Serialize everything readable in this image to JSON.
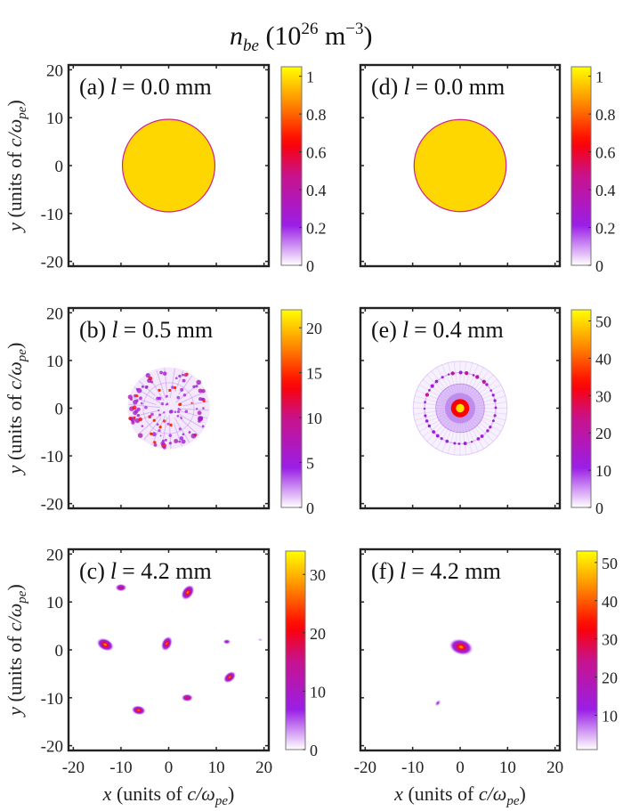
{
  "figure": {
    "title_main": "n",
    "title_sub": "be",
    "title_rest": " (10",
    "title_exp": "26",
    "title_unit": " m",
    "title_unit_exp": "−3",
    "title_close": ")"
  },
  "colormap": [
    "#ffffff",
    "#9a1fe6",
    "#c8128c",
    "#ff0000",
    "#ff8c00",
    "#ffff00"
  ],
  "chart_data": [
    {
      "type": "heatmap",
      "panel": "a",
      "label": "(a)",
      "l_text": "l = 0.0 mm",
      "xlim": [
        -21,
        21
      ],
      "ylim": [
        -21,
        21
      ],
      "xticks": [
        -20,
        -10,
        0,
        10,
        20
      ],
      "yticks": [
        -20,
        -10,
        0,
        10,
        20
      ],
      "ytick_labels": [
        "20",
        "10",
        "0",
        "-10",
        "-20"
      ],
      "xlabel": "",
      "ylabel": "y (units of c/ω_pe)",
      "ylabel_parts": {
        "var": "y",
        "text": " (units of ",
        "c": "c/ω",
        "sub": "pe",
        "close": ")"
      },
      "colorbar": {
        "min": 0,
        "max": 1.05,
        "ticks": [
          0,
          0.2,
          0.4,
          0.6,
          0.8,
          1
        ],
        "tick_labels": [
          "0",
          "0.2",
          "0.4",
          "0.6",
          "0.8",
          "1"
        ]
      },
      "features": [
        {
          "kind": "disk",
          "x": 0,
          "y": 0,
          "r": 9.7,
          "value": 1.0
        }
      ]
    },
    {
      "type": "heatmap",
      "panel": "b",
      "label": "(b)",
      "l_text": "l = 0.5 mm",
      "xlim": [
        -21,
        21
      ],
      "ylim": [
        -21,
        21
      ],
      "xticks": [
        -20,
        -10,
        0,
        10,
        20
      ],
      "yticks": [
        -20,
        -10,
        0,
        10,
        20
      ],
      "ytick_labels": [
        "20",
        "10",
        "0",
        "-10",
        "-20"
      ],
      "xlabel": "",
      "ylabel": "y (units of c/ω_pe)",
      "ylabel_parts": {
        "var": "y",
        "text": " (units of ",
        "c": "c/ω",
        "sub": "pe",
        "close": ")"
      },
      "colorbar": {
        "min": 0,
        "max": 22,
        "ticks": [
          0,
          5,
          10,
          15,
          20
        ],
        "tick_labels": [
          "0",
          "5",
          "10",
          "15",
          "20"
        ]
      },
      "features": [
        {
          "kind": "filamented-disk",
          "x": 0,
          "y": 0,
          "r": 8.6,
          "value": 20
        }
      ]
    },
    {
      "type": "heatmap",
      "panel": "c",
      "label": "(c)",
      "l_text": "l = 4.2 mm",
      "xlim": [
        -21,
        21
      ],
      "ylim": [
        -21,
        21
      ],
      "xticks": [
        -20,
        -10,
        0,
        10,
        20
      ],
      "yticks": [
        -20,
        -10,
        0,
        10,
        20
      ],
      "xtick_labels": [
        "-20",
        "-10",
        "0",
        "10",
        "20"
      ],
      "ytick_labels": [
        "20",
        "10",
        "0",
        "-10",
        "-20"
      ],
      "xlabel": "x (units of c/ω_pe)",
      "ylabel": "y (units of c/ω_pe)",
      "xlabel_parts": {
        "var": "x",
        "text": " (units of ",
        "c": "c/ω",
        "sub": "pe",
        "close": ")"
      },
      "ylabel_parts": {
        "var": "y",
        "text": " (units of ",
        "c": "c/ω",
        "sub": "pe",
        "close": ")"
      },
      "colorbar": {
        "min": 0,
        "max": 34,
        "ticks": [
          0,
          10,
          20,
          30
        ],
        "tick_labels": [
          "0",
          "10",
          "20",
          "30"
        ]
      },
      "features": [
        {
          "kind": "blob",
          "x": -10,
          "y": 13,
          "size": 0.9,
          "value": 22
        },
        {
          "kind": "blob",
          "x": 4,
          "y": 12,
          "size": 1.3,
          "value": 32,
          "angle": 55
        },
        {
          "kind": "blob",
          "x": -13.3,
          "y": 1.1,
          "size": 1.4,
          "value": 33,
          "angle": -25
        },
        {
          "kind": "blob",
          "x": -0.4,
          "y": 1.3,
          "size": 1.2,
          "value": 30,
          "angle": 65
        },
        {
          "kind": "blob",
          "x": 12.2,
          "y": 1.7,
          "size": 0.6,
          "value": 14
        },
        {
          "kind": "blob",
          "x": 19.2,
          "y": 2.1,
          "size": 0.4,
          "value": 4
        },
        {
          "kind": "blob",
          "x": 12.8,
          "y": -5.7,
          "size": 1.1,
          "value": 30,
          "angle": 40
        },
        {
          "kind": "blob",
          "x": 3.9,
          "y": -10,
          "size": 0.9,
          "value": 25
        },
        {
          "kind": "blob",
          "x": -6.3,
          "y": -12.6,
          "size": 1.1,
          "value": 30,
          "angle": -10
        }
      ]
    },
    {
      "type": "heatmap",
      "panel": "d",
      "label": "(d)",
      "l_text": "l = 0.0 mm",
      "xlim": [
        -21,
        21
      ],
      "ylim": [
        -21,
        21
      ],
      "xticks": [
        -20,
        -10,
        0,
        10,
        20
      ],
      "yticks": [
        -20,
        -10,
        0,
        10,
        20
      ],
      "xlabel": "",
      "ylabel": "",
      "colorbar": {
        "min": 0,
        "max": 1.05,
        "ticks": [
          0,
          0.2,
          0.4,
          0.6,
          0.8,
          1
        ],
        "tick_labels": [
          "0",
          "0.2",
          "0.4",
          "0.6",
          "0.8",
          "1"
        ]
      },
      "features": [
        {
          "kind": "disk",
          "x": 0,
          "y": 0,
          "r": 9.7,
          "value": 1.0
        }
      ]
    },
    {
      "type": "heatmap",
      "panel": "e",
      "label": "(e)",
      "l_text": "l = 0.4 mm",
      "xlim": [
        -21,
        21
      ],
      "ylim": [
        -21,
        21
      ],
      "xticks": [
        -20,
        -10,
        0,
        10,
        20
      ],
      "yticks": [
        -20,
        -10,
        0,
        10,
        20
      ],
      "xlabel": "",
      "ylabel": "",
      "colorbar": {
        "min": 0,
        "max": 53,
        "ticks": [
          0,
          10,
          20,
          30,
          40,
          50
        ],
        "tick_labels": [
          "0",
          "10",
          "20",
          "30",
          "40",
          "50"
        ]
      },
      "features": [
        {
          "kind": "halo-ring",
          "x": 0,
          "y": 0,
          "r": 9.9,
          "value": 2
        },
        {
          "kind": "dotted-ring",
          "x": 0,
          "y": 0,
          "r": 7.5,
          "value": 12
        },
        {
          "kind": "core",
          "x": 0,
          "y": 0,
          "r": 1.6,
          "value": 50
        }
      ]
    },
    {
      "type": "heatmap",
      "panel": "f",
      "label": "(f)",
      "l_text": "l = 4.2 mm",
      "xlim": [
        -21,
        21
      ],
      "ylim": [
        -21,
        21
      ],
      "xticks": [
        -20,
        -10,
        0,
        10,
        20
      ],
      "yticks": [
        -20,
        -10,
        0,
        10,
        20
      ],
      "xtick_labels": [
        "-20",
        "-10",
        "0",
        "10",
        "20"
      ],
      "xlabel": "x (units of c/ω_pe)",
      "ylabel": "",
      "xlabel_parts": {
        "var": "x",
        "text": " (units of ",
        "c": "c/ω",
        "sub": "pe",
        "close": ")"
      },
      "colorbar": {
        "min": 1,
        "max": 53,
        "ticks": [
          10,
          20,
          30,
          40,
          50
        ],
        "tick_labels": [
          "10",
          "20",
          "30",
          "40",
          "50"
        ]
      },
      "features": [
        {
          "kind": "blob",
          "x": 0.2,
          "y": 0.6,
          "size": 1.9,
          "value": 50,
          "angle": -15
        },
        {
          "kind": "blob",
          "x": -4.7,
          "y": -11.1,
          "size": 0.6,
          "value": 14,
          "angle": 50
        }
      ]
    }
  ]
}
